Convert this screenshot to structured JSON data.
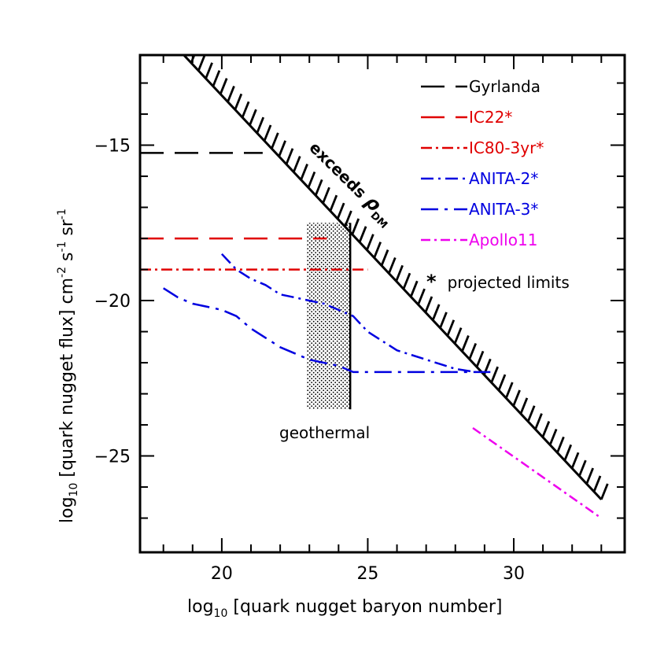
{
  "chart_data": {
    "type": "line",
    "xlabel_main": "log",
    "xlabel_sub": "10",
    "xlabel_rest": " [quark nugget baryon number]",
    "ylabel_main": "log",
    "ylabel_sub": "10",
    "ylabel_rest": " [quark nugget flux] cm",
    "ylabel_units": [
      "-2",
      " s",
      "-1",
      " sr",
      "-1"
    ],
    "xlim": [
      17.2,
      33.8
    ],
    "ylim": [
      -28.1,
      -12.1
    ],
    "x_ticks": [
      20,
      25,
      30
    ],
    "x_tick_labels": [
      "20",
      "25",
      "30"
    ],
    "x_minor_ticks": [
      18,
      19,
      21,
      22,
      23,
      24,
      26,
      27,
      28,
      29,
      31,
      32,
      33
    ],
    "y_ticks": [
      -15,
      -20,
      -25
    ],
    "y_tick_labels": [
      "−15",
      "−20",
      "−25"
    ],
    "y_minor_ticks": [
      -13,
      -14,
      -16,
      -17,
      -18,
      -19,
      -21,
      -22,
      -23,
      -24,
      -26,
      -27
    ],
    "grid": false,
    "legend_position": "top-right",
    "series": [
      {
        "name": "Gyrlanda",
        "color": "#000000",
        "dash": "30,14",
        "width": 2.5,
        "points": [
          [
            17.2,
            -15.25
          ],
          [
            21.4,
            -15.25
          ]
        ]
      },
      {
        "name": "IC22*",
        "color": "#e00000",
        "dash": "30,14",
        "width": 2.5,
        "points": [
          [
            17.2,
            -18.0
          ],
          [
            23.6,
            -18.0
          ]
        ]
      },
      {
        "name": "IC80-3yr*",
        "color": "#e00000",
        "dash": "14,5,3,5",
        "width": 2.5,
        "points": [
          [
            17.2,
            -19.0
          ],
          [
            25.0,
            -19.0
          ]
        ]
      },
      {
        "name": "ANITA-2*",
        "color": "#0000e0",
        "dash": "16,6,3,6",
        "width": 2.5,
        "points": [
          [
            20.0,
            -18.5
          ],
          [
            20.5,
            -19.0
          ],
          [
            21.0,
            -19.3
          ],
          [
            21.5,
            -19.5
          ],
          [
            22.0,
            -19.8
          ],
          [
            22.5,
            -19.9
          ],
          [
            23.0,
            -20.0
          ],
          [
            23.5,
            -20.1
          ],
          [
            24.0,
            -20.3
          ],
          [
            24.5,
            -20.5
          ],
          [
            25.0,
            -21.0
          ],
          [
            26.0,
            -21.6
          ],
          [
            27.0,
            -21.9
          ],
          [
            28.0,
            -22.2
          ],
          [
            28.7,
            -22.3
          ]
        ]
      },
      {
        "name": "ANITA-3*",
        "color": "#0000e0",
        "dash": "22,8,4,8",
        "width": 2.5,
        "points": [
          [
            18.0,
            -19.6
          ],
          [
            18.5,
            -19.9
          ],
          [
            19.0,
            -20.1
          ],
          [
            19.5,
            -20.2
          ],
          [
            20.0,
            -20.3
          ],
          [
            20.5,
            -20.5
          ],
          [
            21.0,
            -20.9
          ],
          [
            21.5,
            -21.2
          ],
          [
            22.0,
            -21.5
          ],
          [
            22.5,
            -21.7
          ],
          [
            23.0,
            -21.9
          ],
          [
            23.5,
            -22.0
          ],
          [
            24.0,
            -22.1
          ],
          [
            24.5,
            -22.3
          ],
          [
            25.0,
            -22.3
          ],
          [
            26.0,
            -22.3
          ],
          [
            27.0,
            -22.3
          ],
          [
            28.0,
            -22.3
          ],
          [
            29.2,
            -22.3
          ]
        ]
      },
      {
        "name": "Apollo11",
        "color": "#ee00ee",
        "dash": "12,5,3,5",
        "width": 2.5,
        "points": [
          [
            28.6,
            -24.1
          ],
          [
            33.0,
            -27.0
          ]
        ]
      }
    ],
    "dm_boundary": {
      "label_main": "exceeds ",
      "label_rho": "ρ",
      "label_sub": "DM",
      "points": [
        [
          18.7,
          -12.1
        ],
        [
          33.0,
          -26.4
        ]
      ],
      "hatch_side": "upper-right"
    },
    "geothermal": {
      "label": "geothermal",
      "x_range": [
        22.9,
        24.4
      ],
      "y_range": [
        -23.5,
        -17.5
      ]
    },
    "legend_note": {
      "symbol": "*",
      "text": "projected limits"
    }
  }
}
